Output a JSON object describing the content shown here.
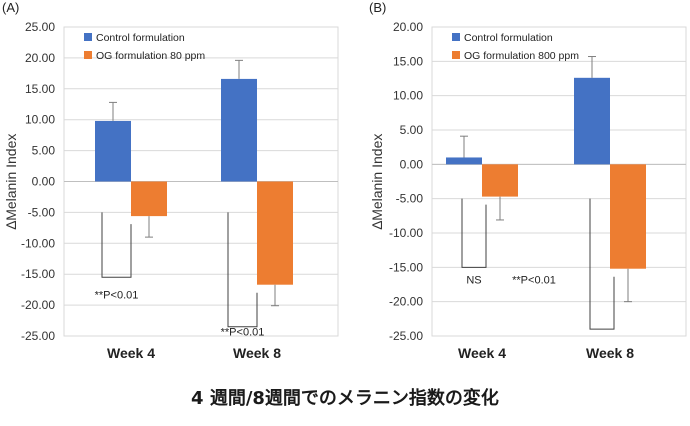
{
  "caption": "4 週間/8週間でのメラニン指数の変化",
  "colors": {
    "control": "#4472c4",
    "og": "#ed7d31",
    "grid": "#d9d9d9",
    "axis": "#595959",
    "bracket": "#404040"
  },
  "chart_data": [
    {
      "type": "bar",
      "panel_label": "(A)",
      "ylabel": "∆Melanin Index",
      "ylim": [
        -25,
        25
      ],
      "ytick_step": 5,
      "ytick_decimals": 2,
      "categories": [
        "Week 4",
        "Week 8"
      ],
      "series": [
        {
          "name": "Control formulation",
          "values": [
            9.8,
            16.6
          ],
          "errors": [
            3.0,
            3.0
          ]
        },
        {
          "name": "OG formulation 80 ppm",
          "values": [
            -5.6,
            -16.7
          ],
          "errors": [
            3.4,
            3.4
          ]
        }
      ],
      "annotations": [
        {
          "text": "**P<0.01",
          "category": 0,
          "depth": -15.5,
          "text_at": -18.3
        },
        {
          "text": "**P<0.01",
          "category": 1,
          "depth": -23.5,
          "text_at": -24.3
        }
      ],
      "legend": "top-left",
      "grid": true
    },
    {
      "type": "bar",
      "panel_label": "(B)",
      "ylabel": "∆Melanin Index",
      "ylim": [
        -25,
        20
      ],
      "ytick_step": 5,
      "ytick_decimals": 2,
      "categories": [
        "Week 4",
        "Week 8"
      ],
      "series": [
        {
          "name": "Control formulation",
          "values": [
            1.0,
            12.6
          ],
          "errors": [
            3.1,
            3.1
          ]
        },
        {
          "name": "OG formulation 800 ppm",
          "values": [
            -4.7,
            -15.2
          ],
          "errors": [
            3.4,
            4.8
          ]
        }
      ],
      "annotations": [
        {
          "text": "NS",
          "category": 0,
          "depth": -15.0,
          "text_at": -16.8
        },
        {
          "text": "**P<0.01",
          "category": 1,
          "depth": -24.0,
          "text_at": -16.8,
          "text_offset_category": 0.5
        }
      ],
      "legend": "top-left",
      "grid": true
    }
  ]
}
